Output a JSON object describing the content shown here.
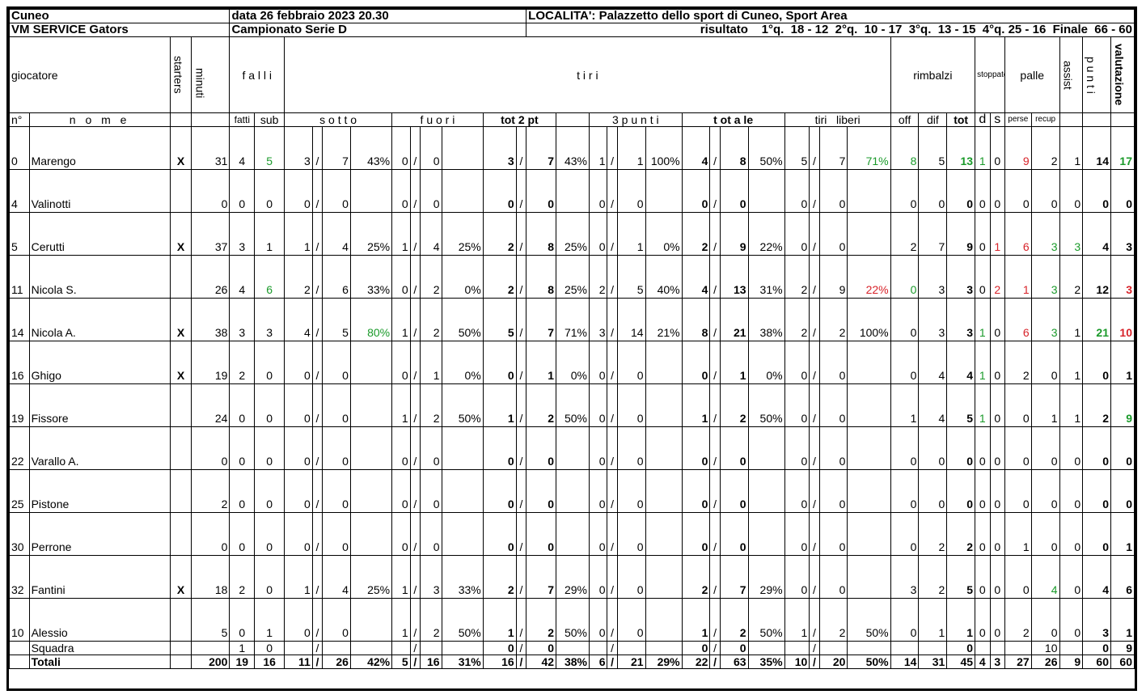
{
  "header": {
    "team_city": "Cuneo",
    "date": "data 26 febbraio 2023 20.30",
    "location": "LOCALITA': Palazzetto dello sport di Cuneo, Sport Area",
    "team_name": "VM SERVICE Gators",
    "championship": "Campionato Serie D",
    "result": "risultato    1°q.  18 - 12  2°q.  10 - 17  3°q.  13 - 15  4°q. 25 - 16  Finale  66 - 60"
  },
  "columns": {
    "giocatore": "giocatore",
    "starters": "starters",
    "minuti": "minuti",
    "falli": "f a l l i",
    "tiri": "t  i  r  i",
    "rimbalzi": "rimbalzi",
    "stoppate": "stoppate",
    "palle": "palle",
    "assist": "assist",
    "punti": "p u n t i",
    "valutazione": "valutazione",
    "num": "n°",
    "nome": "n o m e",
    "fatti": "fatti",
    "sub": "sub",
    "sotto": "s o t t o",
    "fuori": "f u o r i",
    "tot2pt": "tot 2 pt",
    "tre_punti": "3 p u n t i",
    "totale": "t ot a le",
    "tiri_liberi": "tiri   liberi",
    "off": "off",
    "dif": "dif",
    "tot": "tot",
    "d": "d",
    "s": "s",
    "perse": "perse",
    "recup": "recup"
  },
  "players": [
    {
      "num": "0",
      "name": "Marengo",
      "starter": "X",
      "min": "31",
      "fatti": "4",
      "sub": "5",
      "sub_c": "green",
      "s_m": "3",
      "s_a": "7",
      "s_p": "43%",
      "s_pc": "",
      "f_m": "0",
      "f_a": "0",
      "f_p": "",
      "f_pc": "",
      "t2_m": "3",
      "t2_a": "7",
      "t2_p": "43%",
      "t3_m": "1",
      "t3_a": "1",
      "t3_p": "100%",
      "tt_m": "4",
      "tt_a": "8",
      "tt_p": "50%",
      "tl_m": "5",
      "tl_a": "7",
      "tl_p": "71%",
      "tl_pc": "green",
      "off": "8",
      "off_c": "green",
      "dif": "5",
      "tot": "13",
      "tot_c": "green",
      "d": "1",
      "d_c": "green",
      "s": "0",
      "s_c": "",
      "perse": "9",
      "perse_c": "red",
      "recup": "2",
      "recup_c": "",
      "assist": "1",
      "assist_c": "",
      "punti": "14",
      "punti_c": "",
      "val": "17",
      "val_c": "green"
    },
    {
      "num": "4",
      "name": "Valinotti",
      "starter": "",
      "min": "0",
      "fatti": "0",
      "sub": "0",
      "sub_c": "",
      "s_m": "0",
      "s_a": "0",
      "s_p": "",
      "s_pc": "",
      "f_m": "0",
      "f_a": "0",
      "f_p": "",
      "f_pc": "",
      "t2_m": "0",
      "t2_a": "0",
      "t2_p": "",
      "t3_m": "0",
      "t3_a": "0",
      "t3_p": "",
      "tt_m": "0",
      "tt_a": "0",
      "tt_p": "",
      "tl_m": "0",
      "tl_a": "0",
      "tl_p": "",
      "tl_pc": "",
      "off": "0",
      "off_c": "",
      "dif": "0",
      "tot": "0",
      "tot_c": "",
      "d": "0",
      "d_c": "",
      "s": "0",
      "s_c": "",
      "perse": "0",
      "perse_c": "",
      "recup": "0",
      "recup_c": "",
      "assist": "0",
      "assist_c": "",
      "punti": "0",
      "punti_c": "",
      "val": "0",
      "val_c": ""
    },
    {
      "num": "5",
      "name": "Cerutti",
      "starter": "X",
      "min": "37",
      "fatti": "3",
      "sub": "1",
      "sub_c": "",
      "s_m": "1",
      "s_a": "4",
      "s_p": "25%",
      "s_pc": "",
      "f_m": "1",
      "f_a": "4",
      "f_p": "25%",
      "f_pc": "",
      "t2_m": "2",
      "t2_a": "8",
      "t2_p": "25%",
      "t3_m": "0",
      "t3_a": "1",
      "t3_p": "0%",
      "tt_m": "2",
      "tt_a": "9",
      "tt_p": "22%",
      "tl_m": "0",
      "tl_a": "0",
      "tl_p": "",
      "tl_pc": "",
      "off": "2",
      "off_c": "",
      "dif": "7",
      "tot": "9",
      "tot_c": "",
      "d": "0",
      "d_c": "",
      "s": "1",
      "s_c": "red",
      "perse": "6",
      "perse_c": "red",
      "recup": "3",
      "recup_c": "green",
      "assist": "3",
      "assist_c": "green",
      "punti": "4",
      "punti_c": "",
      "val": "3",
      "val_c": ""
    },
    {
      "num": "11",
      "name": "Nicola S.",
      "starter": "",
      "min": "26",
      "fatti": "4",
      "sub": "6",
      "sub_c": "green",
      "s_m": "2",
      "s_a": "6",
      "s_p": "33%",
      "s_pc": "",
      "f_m": "0",
      "f_a": "2",
      "f_p": "0%",
      "f_pc": "",
      "t2_m": "2",
      "t2_a": "8",
      "t2_p": "25%",
      "t3_m": "2",
      "t3_a": "5",
      "t3_p": "40%",
      "tt_m": "4",
      "tt_a": "13",
      "tt_p": "31%",
      "tl_m": "2",
      "tl_a": "9",
      "tl_p": "22%",
      "tl_pc": "red",
      "off": "0",
      "off_c": "green",
      "dif": "3",
      "tot": "3",
      "tot_c": "",
      "d": "0",
      "d_c": "",
      "s": "2",
      "s_c": "red",
      "perse": "1",
      "perse_c": "red",
      "recup": "3",
      "recup_c": "green",
      "assist": "2",
      "assist_c": "",
      "punti": "12",
      "punti_c": "",
      "val": "3",
      "val_c": "red"
    },
    {
      "num": "14",
      "name": "Nicola A.",
      "starter": "X",
      "min": "38",
      "fatti": "3",
      "sub": "3",
      "sub_c": "",
      "s_m": "4",
      "s_a": "5",
      "s_p": "80%",
      "s_pc": "green",
      "f_m": "1",
      "f_a": "2",
      "f_p": "50%",
      "f_pc": "",
      "t2_m": "5",
      "t2_a": "7",
      "t2_p": "71%",
      "t3_m": "3",
      "t3_a": "14",
      "t3_p": "21%",
      "tt_m": "8",
      "tt_a": "21",
      "tt_p": "38%",
      "tl_m": "2",
      "tl_a": "2",
      "tl_p": "100%",
      "tl_pc": "",
      "off": "0",
      "off_c": "",
      "dif": "3",
      "tot": "3",
      "tot_c": "",
      "d": "1",
      "d_c": "green",
      "s": "0",
      "s_c": "",
      "perse": "6",
      "perse_c": "red",
      "recup": "3",
      "recup_c": "green",
      "assist": "1",
      "assist_c": "",
      "punti": "21",
      "punti_c": "green",
      "val": "10",
      "val_c": "red"
    },
    {
      "num": "16",
      "name": "Ghigo",
      "starter": "X",
      "min": "19",
      "fatti": "2",
      "sub": "0",
      "sub_c": "",
      "s_m": "0",
      "s_a": "0",
      "s_p": "",
      "s_pc": "",
      "f_m": "0",
      "f_a": "1",
      "f_p": "0%",
      "f_pc": "",
      "t2_m": "0",
      "t2_a": "1",
      "t2_p": "0%",
      "t3_m": "0",
      "t3_a": "0",
      "t3_p": "",
      "tt_m": "0",
      "tt_a": "1",
      "tt_p": "0%",
      "tl_m": "0",
      "tl_a": "0",
      "tl_p": "",
      "tl_pc": "",
      "off": "0",
      "off_c": "",
      "dif": "4",
      "tot": "4",
      "tot_c": "",
      "d": "1",
      "d_c": "green",
      "s": "0",
      "s_c": "",
      "perse": "2",
      "perse_c": "",
      "recup": "0",
      "recup_c": "",
      "assist": "1",
      "assist_c": "",
      "punti": "0",
      "punti_c": "",
      "val": "1",
      "val_c": ""
    },
    {
      "num": "19",
      "name": "Fissore",
      "starter": "",
      "min": "24",
      "fatti": "0",
      "sub": "0",
      "sub_c": "",
      "s_m": "0",
      "s_a": "0",
      "s_p": "",
      "s_pc": "",
      "f_m": "1",
      "f_a": "2",
      "f_p": "50%",
      "f_pc": "",
      "t2_m": "1",
      "t2_a": "2",
      "t2_p": "50%",
      "t3_m": "0",
      "t3_a": "0",
      "t3_p": "",
      "tt_m": "1",
      "tt_a": "2",
      "tt_p": "50%",
      "tl_m": "0",
      "tl_a": "0",
      "tl_p": "",
      "tl_pc": "",
      "off": "1",
      "off_c": "",
      "dif": "4",
      "tot": "5",
      "tot_c": "",
      "d": "1",
      "d_c": "green",
      "s": "0",
      "s_c": "",
      "perse": "0",
      "perse_c": "",
      "recup": "1",
      "recup_c": "",
      "assist": "1",
      "assist_c": "",
      "punti": "2",
      "punti_c": "",
      "val": "9",
      "val_c": "green"
    },
    {
      "num": "22",
      "name": "Varallo A.",
      "starter": "",
      "min": "0",
      "fatti": "0",
      "sub": "0",
      "sub_c": "",
      "s_m": "0",
      "s_a": "0",
      "s_p": "",
      "s_pc": "",
      "f_m": "0",
      "f_a": "0",
      "f_p": "",
      "f_pc": "",
      "t2_m": "0",
      "t2_a": "0",
      "t2_p": "",
      "t3_m": "0",
      "t3_a": "0",
      "t3_p": "",
      "tt_m": "0",
      "tt_a": "0",
      "tt_p": "",
      "tl_m": "0",
      "tl_a": "0",
      "tl_p": "",
      "tl_pc": "",
      "off": "0",
      "off_c": "",
      "dif": "0",
      "tot": "0",
      "tot_c": "",
      "d": "0",
      "d_c": "",
      "s": "0",
      "s_c": "",
      "perse": "0",
      "perse_c": "",
      "recup": "0",
      "recup_c": "",
      "assist": "0",
      "assist_c": "",
      "punti": "0",
      "punti_c": "",
      "val": "0",
      "val_c": ""
    },
    {
      "num": "25",
      "name": "Pistone",
      "starter": "",
      "min": "2",
      "fatti": "0",
      "sub": "0",
      "sub_c": "",
      "s_m": "0",
      "s_a": "0",
      "s_p": "",
      "s_pc": "",
      "f_m": "0",
      "f_a": "0",
      "f_p": "",
      "f_pc": "",
      "t2_m": "0",
      "t2_a": "0",
      "t2_p": "",
      "t3_m": "0",
      "t3_a": "0",
      "t3_p": "",
      "tt_m": "0",
      "tt_a": "0",
      "tt_p": "",
      "tl_m": "0",
      "tl_a": "0",
      "tl_p": "",
      "tl_pc": "",
      "off": "0",
      "off_c": "",
      "dif": "0",
      "tot": "0",
      "tot_c": "",
      "d": "0",
      "d_c": "",
      "s": "0",
      "s_c": "",
      "perse": "0",
      "perse_c": "",
      "recup": "0",
      "recup_c": "",
      "assist": "0",
      "assist_c": "",
      "punti": "0",
      "punti_c": "",
      "val": "0",
      "val_c": ""
    },
    {
      "num": "30",
      "name": "Perrone",
      "starter": "",
      "min": "0",
      "fatti": "0",
      "sub": "0",
      "sub_c": "",
      "s_m": "0",
      "s_a": "0",
      "s_p": "",
      "s_pc": "",
      "f_m": "0",
      "f_a": "0",
      "f_p": "",
      "f_pc": "",
      "t2_m": "0",
      "t2_a": "0",
      "t2_p": "",
      "t3_m": "0",
      "t3_a": "0",
      "t3_p": "",
      "tt_m": "0",
      "tt_a": "0",
      "tt_p": "",
      "tl_m": "0",
      "tl_a": "0",
      "tl_p": "",
      "tl_pc": "",
      "off": "0",
      "off_c": "",
      "dif": "2",
      "tot": "2",
      "tot_c": "",
      "d": "0",
      "d_c": "",
      "s": "0",
      "s_c": "",
      "perse": "1",
      "perse_c": "",
      "recup": "0",
      "recup_c": "",
      "assist": "0",
      "assist_c": "",
      "punti": "0",
      "punti_c": "",
      "val": "1",
      "val_c": ""
    },
    {
      "num": "32",
      "name": "Fantini",
      "starter": "X",
      "min": "18",
      "fatti": "2",
      "sub": "0",
      "sub_c": "",
      "s_m": "1",
      "s_a": "4",
      "s_p": "25%",
      "s_pc": "",
      "f_m": "1",
      "f_a": "3",
      "f_p": "33%",
      "f_pc": "",
      "t2_m": "2",
      "t2_a": "7",
      "t2_p": "29%",
      "t3_m": "0",
      "t3_a": "0",
      "t3_p": "",
      "tt_m": "2",
      "tt_a": "7",
      "tt_p": "29%",
      "tl_m": "0",
      "tl_a": "0",
      "tl_p": "",
      "tl_pc": "",
      "off": "3",
      "off_c": "",
      "dif": "2",
      "tot": "5",
      "tot_c": "",
      "d": "0",
      "d_c": "",
      "s": "0",
      "s_c": "",
      "perse": "0",
      "perse_c": "",
      "recup": "4",
      "recup_c": "green",
      "assist": "0",
      "assist_c": "",
      "punti": "4",
      "punti_c": "",
      "val": "6",
      "val_c": ""
    },
    {
      "num": "10",
      "name": "Alessio",
      "starter": "",
      "min": "5",
      "fatti": "0",
      "sub": "1",
      "sub_c": "",
      "s_m": "0",
      "s_a": "0",
      "s_p": "",
      "s_pc": "",
      "f_m": "1",
      "f_a": "2",
      "f_p": "50%",
      "f_pc": "",
      "t2_m": "1",
      "t2_a": "2",
      "t2_p": "50%",
      "t3_m": "0",
      "t3_a": "0",
      "t3_p": "",
      "tt_m": "1",
      "tt_a": "2",
      "tt_p": "50%",
      "tl_m": "1",
      "tl_a": "2",
      "tl_p": "50%",
      "tl_pc": "",
      "off": "0",
      "off_c": "",
      "dif": "1",
      "tot": "1",
      "tot_c": "",
      "d": "0",
      "d_c": "",
      "s": "0",
      "s_c": "",
      "perse": "2",
      "perse_c": "",
      "recup": "0",
      "recup_c": "",
      "assist": "0",
      "assist_c": "",
      "punti": "3",
      "punti_c": "",
      "val": "1",
      "val_c": ""
    }
  ],
  "squadra": {
    "label": "Squadra",
    "fatti": "1",
    "sub": "0",
    "t2_m": "0",
    "t2_a": "0",
    "tt_m": "0",
    "tt_a": "0",
    "tot": "0",
    "recup": "10",
    "punti": "0",
    "val": "9"
  },
  "totali": {
    "label": "Totali",
    "min": "200",
    "fatti": "19",
    "sub": "16",
    "s_m": "11",
    "s_a": "26",
    "s_p": "42%",
    "f_m": "5",
    "f_a": "16",
    "f_p": "31%",
    "t2_m": "16",
    "t2_a": "42",
    "t2_p": "38%",
    "t3_m": "6",
    "t3_a": "21",
    "t3_p": "29%",
    "tt_m": "22",
    "tt_a": "63",
    "tt_p": "35%",
    "tl_m": "10",
    "tl_a": "20",
    "tl_p": "50%",
    "off": "14",
    "dif": "31",
    "tot": "45",
    "d": "4",
    "s": "3",
    "perse": "27",
    "recup": "26",
    "assist": "9",
    "punti": "60",
    "val": "60"
  },
  "slash": "/",
  "colors": {
    "green": "#1a9a2a",
    "red": "#d8232a"
  }
}
